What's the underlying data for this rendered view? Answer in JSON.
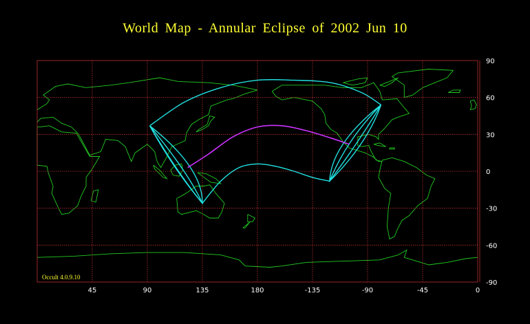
{
  "title": "World Map  -  Annular  Eclipse  of  2002 Jun 10",
  "credit": "Occult 4.0.9.10",
  "colors": {
    "background": "#000000",
    "grid": "#c03030",
    "land": "#22cc22",
    "path_limits": "#22e0e0",
    "central_line": "#cc33ff",
    "title": "#ffff33",
    "ticks": "#ffffff"
  },
  "x_ticks": [
    {
      "lon": 45,
      "label": "45"
    },
    {
      "lon": 90,
      "label": "90"
    },
    {
      "lon": 135,
      "label": "135"
    },
    {
      "lon": 180,
      "label": "180"
    },
    {
      "lon": 225,
      "label": "-135"
    },
    {
      "lon": 270,
      "label": "-90"
    },
    {
      "lon": 315,
      "label": "-45"
    },
    {
      "lon": 360,
      "label": "0"
    }
  ],
  "y_ticks": [
    {
      "lat": 90,
      "label": "90"
    },
    {
      "lat": 60,
      "label": "60"
    },
    {
      "lat": 30,
      "label": "30"
    },
    {
      "lat": 0,
      "label": "0"
    },
    {
      "lat": -30,
      "label": "-30"
    },
    {
      "lat": -60,
      "label": "-60"
    },
    {
      "lat": -90,
      "label": "-90"
    }
  ],
  "central_line": [
    [
      123,
      3
    ],
    [
      140,
      14
    ],
    [
      160,
      28
    ],
    [
      180,
      36
    ],
    [
      200,
      37
    ],
    [
      220,
      33
    ],
    [
      240,
      27
    ],
    [
      255,
      22
    ]
  ],
  "outer_limit": {
    "north": [
      [
        92,
        37
      ],
      [
        120,
        56
      ],
      [
        150,
        68
      ],
      [
        180,
        74
      ],
      [
        210,
        74
      ],
      [
        240,
        72
      ],
      [
        265,
        64
      ],
      [
        281,
        54
      ]
    ],
    "south": [
      [
        135,
        -26
      ],
      [
        150,
        -8
      ],
      [
        165,
        3
      ],
      [
        180,
        6
      ],
      [
        195,
        4
      ],
      [
        210,
        0
      ],
      [
        225,
        -5
      ],
      [
        239,
        -8
      ]
    ]
  }
}
